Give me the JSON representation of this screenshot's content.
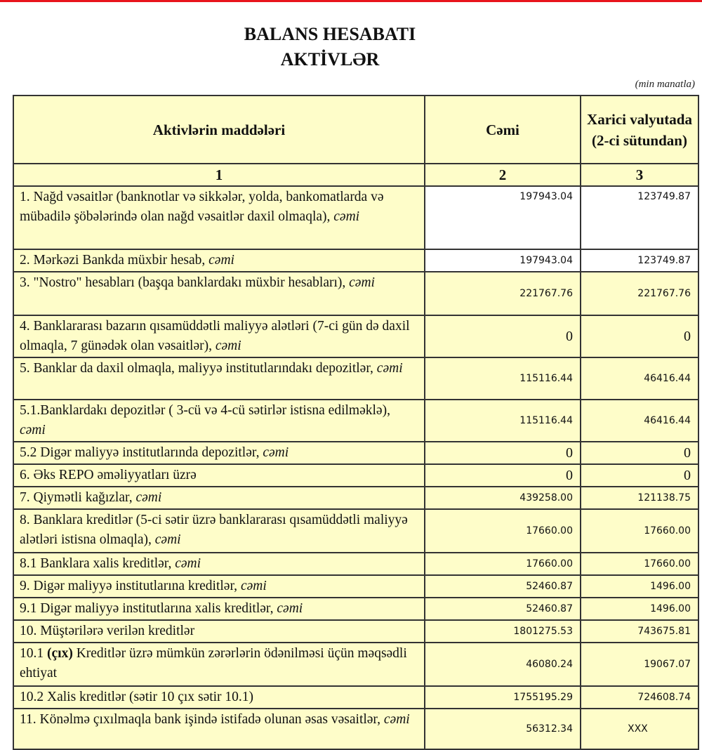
{
  "title_line1": "BALANS HESABATI",
  "title_line2": "AKTİVLƏR",
  "unit": "(min manatla)",
  "colors": {
    "cell_bg": "#fefdc9",
    "top_line": "#e8141c"
  },
  "header": {
    "col1": "Aktivlərin   maddələri",
    "col2": "Cəmi",
    "col3": "Xarici valyutada (2-ci sütundan)",
    "num1": "1",
    "num2": "2",
    "num3": "3"
  },
  "rows": [
    {
      "label": "1. Nağd vəsaitlər (banknotlar və sikkələr, yolda, bankomatlarda və mübadilə şöbələrində olan nağd vəsaitlər daxil olmaqla),",
      "suffix": "cəmi",
      "total": "197943.04",
      "foreign": "123749.87"
    },
    {
      "label": "2. Mərkəzi Bankda müxbir hesab,",
      "suffix": "cəmi",
      "total": "197943.04",
      "foreign": "123749.87"
    },
    {
      "label": "3. \"Nostro\" hesabları (başqa banklardakı müxbir hesabları),",
      "suffix": "cəmi",
      "total": "221767.76",
      "foreign": "221767.76"
    },
    {
      "label": "4. Banklararası bazarın qısamüddətli maliyyə alətləri (7-ci gün də daxil olmaqla, 7 günədək olan vəsaitlər),",
      "suffix": "cəmi",
      "total": "0",
      "foreign": "0"
    },
    {
      "label": "5. Banklar da daxil olmaqla, maliyyə institutlarındakı depozitlər,",
      "suffix": "cəmi",
      "total": "115116.44",
      "foreign": "46416.44"
    },
    {
      "label": "5.1.Banklardakı depozitlər ( 3-cü və 4-cü sətirlər istisna edilməklə),",
      "suffix": "cəmi",
      "total": "115116.44",
      "foreign": "46416.44"
    },
    {
      "label": "5.2 Digər maliyyə institutlarında depozitlər,",
      "suffix": "cəmi",
      "total": "0",
      "foreign": "0"
    },
    {
      "label": "6. Əks REPO əməliyyatları üzrə",
      "suffix": "",
      "total": "0",
      "foreign": "0"
    },
    {
      "label": "7. Qiymətli kağızlar,",
      "suffix": "cəmi",
      "total": "439258.00",
      "foreign": "121138.75"
    },
    {
      "label": "8. Banklara kreditlər (5-ci sətir üzrə banklararası qısamüddətli maliyyə alətləri istisna olmaqla),",
      "suffix": "cəmi",
      "total": "17660.00",
      "foreign": "17660.00"
    },
    {
      "label": "8.1 Banklara xalis kreditlər,",
      "suffix": "cəmi",
      "total": "17660.00",
      "foreign": "17660.00"
    },
    {
      "label": "9. Digər maliyyə institutlarına kreditlər,",
      "suffix": "cəmi",
      "total": "52460.87",
      "foreign": "1496.00"
    },
    {
      "label": "9.1 Digər maliyyə institutlarına xalis kreditlər,",
      "suffix": "cəmi",
      "total": "52460.87",
      "foreign": "1496.00"
    },
    {
      "label": "10. Müştərilərə verilən kreditlər",
      "suffix": "",
      "total": "1801275.53",
      "foreign": "743675.81"
    },
    {
      "label_pre": "10.1 ",
      "label_bold": "(çıx)",
      "label": " Kreditlər üzrə mümkün zərərlərin ödənilməsi üçün məqsədli ehtiyat",
      "suffix": "",
      "total": "46080.24",
      "foreign": "19067.07"
    },
    {
      "label": "10.2 Xalis kreditlər (sətir 10 çıx sətir 10.1)",
      "suffix": "",
      "total": "1755195.29",
      "foreign": "724608.74"
    },
    {
      "label": "11. Könəlmə çıxılmaqla bank işində istifadə olunan əsas vəsaitlər,",
      "suffix": "cəmi",
      "total": "56312.34",
      "foreign": "XXX"
    }
  ]
}
